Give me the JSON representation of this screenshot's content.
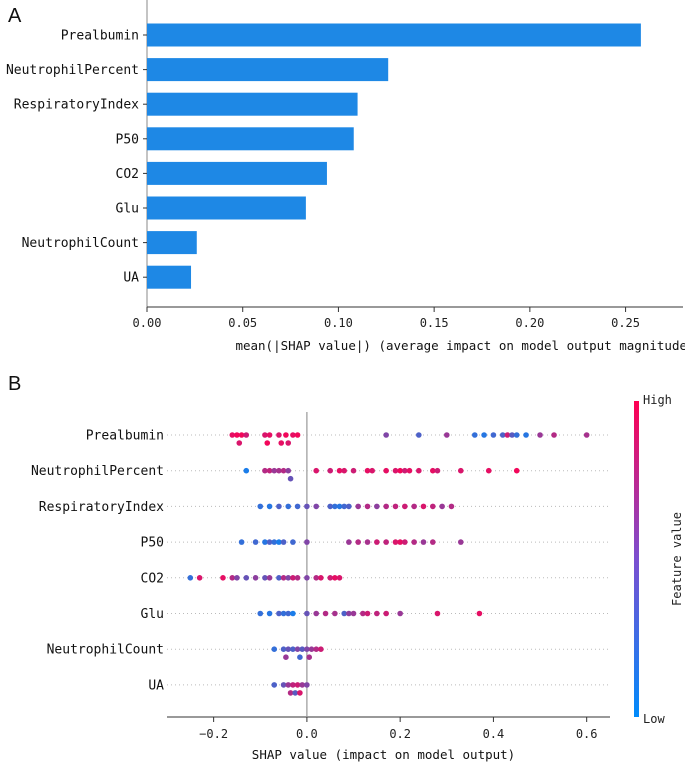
{
  "chart_data": [
    {
      "panel": "A",
      "type": "bar",
      "orientation": "horizontal",
      "categories": [
        "Prealbumin",
        "NeutrophilPercent",
        "RespiratoryIndex",
        "P50",
        "CO2",
        "Glu",
        "NeutrophilCount",
        "UA"
      ],
      "values": [
        0.258,
        0.126,
        0.11,
        0.108,
        0.094,
        0.083,
        0.026,
        0.023
      ],
      "xlabel": "mean(|SHAP value|) (average impact on model output magnitude)",
      "xlim": [
        0.0,
        0.28
      ],
      "xticks": [
        0.0,
        0.05,
        0.1,
        0.15,
        0.2,
        0.25
      ],
      "xtick_labels": [
        "0.00",
        "0.05",
        "0.10",
        "0.15",
        "0.20",
        "0.25"
      ],
      "bar_color": "#1e88e5"
    },
    {
      "panel": "B",
      "type": "scatter",
      "categories": [
        "Prealbumin",
        "NeutrophilPercent",
        "RespiratoryIndex",
        "P50",
        "CO2",
        "Glu",
        "NeutrophilCount",
        "UA"
      ],
      "series": [
        {
          "name": "Prealbumin",
          "points": [
            [
              -0.16,
              0.9
            ],
            [
              -0.15,
              0.95
            ],
            [
              -0.145,
              0.85
            ],
            [
              -0.14,
              0.95
            ],
            [
              -0.13,
              0.8
            ],
            [
              -0.09,
              0.85
            ],
            [
              -0.085,
              0.95
            ],
            [
              -0.08,
              0.9
            ],
            [
              -0.06,
              0.85
            ],
            [
              -0.055,
              0.9
            ],
            [
              -0.045,
              0.95
            ],
            [
              -0.04,
              0.85
            ],
            [
              -0.03,
              0.9
            ],
            [
              -0.02,
              0.95
            ],
            [
              0.17,
              0.5
            ],
            [
              0.24,
              0.3
            ],
            [
              0.3,
              0.6
            ],
            [
              0.36,
              0.2
            ],
            [
              0.38,
              0.15
            ],
            [
              0.4,
              0.25
            ],
            [
              0.42,
              0.3
            ],
            [
              0.43,
              0.8
            ],
            [
              0.44,
              0.35
            ],
            [
              0.45,
              0.2
            ],
            [
              0.47,
              0.15
            ],
            [
              0.5,
              0.6
            ],
            [
              0.53,
              0.7
            ],
            [
              0.6,
              0.65
            ]
          ]
        },
        {
          "name": "NeutrophilPercent",
          "points": [
            [
              -0.13,
              0.1
            ],
            [
              -0.09,
              0.7
            ],
            [
              -0.08,
              0.75
            ],
            [
              -0.07,
              0.6
            ],
            [
              -0.06,
              0.65
            ],
            [
              -0.05,
              0.7
            ],
            [
              -0.04,
              0.55
            ],
            [
              -0.035,
              0.4
            ],
            [
              0.02,
              0.85
            ],
            [
              0.05,
              0.8
            ],
            [
              0.07,
              0.9
            ],
            [
              0.08,
              0.85
            ],
            [
              0.1,
              0.8
            ],
            [
              0.13,
              0.9
            ],
            [
              0.14,
              0.85
            ],
            [
              0.17,
              0.9
            ],
            [
              0.19,
              0.85
            ],
            [
              0.2,
              0.95
            ],
            [
              0.21,
              0.8
            ],
            [
              0.22,
              0.9
            ],
            [
              0.24,
              0.85
            ],
            [
              0.27,
              0.9
            ],
            [
              0.28,
              0.8
            ],
            [
              0.33,
              0.85
            ],
            [
              0.39,
              0.9
            ],
            [
              0.45,
              0.95
            ]
          ]
        },
        {
          "name": "RespiratoryIndex",
          "points": [
            [
              -0.1,
              0.2
            ],
            [
              -0.08,
              0.15
            ],
            [
              -0.06,
              0.3
            ],
            [
              -0.04,
              0.2
            ],
            [
              -0.02,
              0.25
            ],
            [
              0.0,
              0.4
            ],
            [
              0.02,
              0.5
            ],
            [
              0.05,
              0.3
            ],
            [
              0.06,
              0.2
            ],
            [
              0.07,
              0.15
            ],
            [
              0.08,
              0.25
            ],
            [
              0.09,
              0.3
            ],
            [
              0.11,
              0.6
            ],
            [
              0.13,
              0.7
            ],
            [
              0.15,
              0.55
            ],
            [
              0.17,
              0.7
            ],
            [
              0.19,
              0.75
            ],
            [
              0.21,
              0.8
            ],
            [
              0.23,
              0.7
            ],
            [
              0.25,
              0.85
            ],
            [
              0.27,
              0.75
            ],
            [
              0.29,
              0.6
            ],
            [
              0.31,
              0.7
            ]
          ]
        },
        {
          "name": "P50",
          "points": [
            [
              -0.14,
              0.2
            ],
            [
              -0.11,
              0.25
            ],
            [
              -0.09,
              0.15
            ],
            [
              -0.08,
              0.3
            ],
            [
              -0.07,
              0.2
            ],
            [
              -0.06,
              0.1
            ],
            [
              -0.05,
              0.3
            ],
            [
              -0.03,
              0.25
            ],
            [
              0.0,
              0.5
            ],
            [
              0.09,
              0.6
            ],
            [
              0.11,
              0.7
            ],
            [
              0.13,
              0.65
            ],
            [
              0.15,
              0.8
            ],
            [
              0.17,
              0.75
            ],
            [
              0.19,
              0.85
            ],
            [
              0.2,
              0.9
            ],
            [
              0.21,
              0.8
            ],
            [
              0.23,
              0.7
            ],
            [
              0.25,
              0.6
            ],
            [
              0.27,
              0.7
            ],
            [
              0.33,
              0.6
            ]
          ]
        },
        {
          "name": "CO2",
          "points": [
            [
              -0.25,
              0.2
            ],
            [
              -0.23,
              0.85
            ],
            [
              -0.18,
              0.9
            ],
            [
              -0.16,
              0.7
            ],
            [
              -0.15,
              0.5
            ],
            [
              -0.13,
              0.4
            ],
            [
              -0.11,
              0.55
            ],
            [
              -0.09,
              0.4
            ],
            [
              -0.08,
              0.6
            ],
            [
              -0.06,
              0.3
            ],
            [
              -0.05,
              0.7
            ],
            [
              -0.04,
              0.5
            ],
            [
              -0.03,
              0.8
            ],
            [
              -0.02,
              0.7
            ],
            [
              0.0,
              0.5
            ],
            [
              0.02,
              0.7
            ],
            [
              0.03,
              0.85
            ],
            [
              0.05,
              0.8
            ],
            [
              0.06,
              0.9
            ],
            [
              0.07,
              0.85
            ]
          ]
        },
        {
          "name": "Glu",
          "points": [
            [
              -0.1,
              0.2
            ],
            [
              -0.08,
              0.15
            ],
            [
              -0.06,
              0.3
            ],
            [
              -0.05,
              0.2
            ],
            [
              -0.04,
              0.25
            ],
            [
              -0.03,
              0.1
            ],
            [
              0.0,
              0.4
            ],
            [
              0.02,
              0.6
            ],
            [
              0.04,
              0.7
            ],
            [
              0.06,
              0.65
            ],
            [
              0.08,
              0.3
            ],
            [
              0.09,
              0.55
            ],
            [
              0.1,
              0.6
            ],
            [
              0.12,
              0.7
            ],
            [
              0.13,
              0.8
            ],
            [
              0.15,
              0.75
            ],
            [
              0.17,
              0.8
            ],
            [
              0.2,
              0.6
            ],
            [
              0.28,
              0.85
            ],
            [
              0.37,
              0.9
            ]
          ]
        },
        {
          "name": "NeutrophilCount",
          "points": [
            [
              -0.07,
              0.2
            ],
            [
              -0.05,
              0.3
            ],
            [
              -0.04,
              0.4
            ],
            [
              -0.03,
              0.3
            ],
            [
              -0.02,
              0.5
            ],
            [
              -0.01,
              0.35
            ],
            [
              0.0,
              0.5
            ],
            [
              0.01,
              0.6
            ],
            [
              0.02,
              0.7
            ],
            [
              0.03,
              0.8
            ],
            [
              -0.045,
              0.6
            ],
            [
              -0.015,
              0.25
            ],
            [
              0.005,
              0.65
            ]
          ]
        },
        {
          "name": "UA",
          "points": [
            [
              -0.07,
              0.3
            ],
            [
              -0.05,
              0.4
            ],
            [
              -0.04,
              0.6
            ],
            [
              -0.035,
              0.7
            ],
            [
              -0.03,
              0.75
            ],
            [
              -0.02,
              0.8
            ],
            [
              -0.01,
              0.6
            ],
            [
              0.0,
              0.5
            ],
            [
              -0.025,
              0.35
            ],
            [
              -0.015,
              0.85
            ]
          ]
        }
      ],
      "xlabel": "SHAP value (impact on model output)",
      "xlim": [
        -0.3,
        0.65
      ],
      "xticks": [
        -0.2,
        0.0,
        0.2,
        0.4,
        0.6
      ],
      "xtick_labels": [
        "−0.2",
        "0.0",
        "0.2",
        "0.4",
        "0.6"
      ],
      "colorbar": {
        "label": "Feature value",
        "high": "High",
        "low": "Low",
        "low_color": "#008bfb",
        "high_color": "#ff0052"
      }
    }
  ],
  "panels": {
    "a_label": "A",
    "b_label": "B"
  }
}
